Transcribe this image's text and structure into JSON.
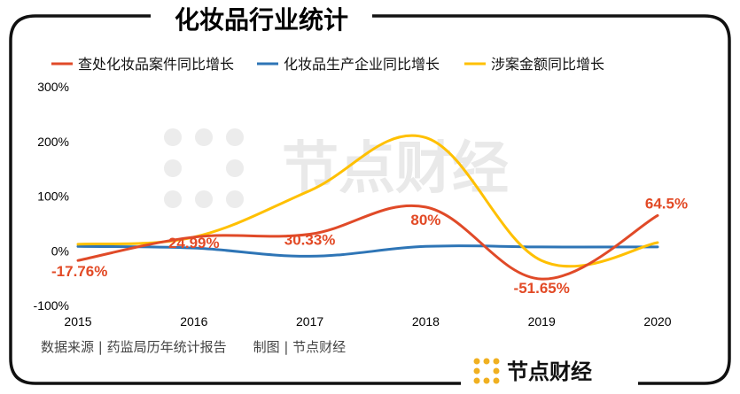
{
  "title": "化妆品行业统计",
  "source_note": "数据来源 | 药监局历年统计报告　　制图 | 节点财经",
  "brand": "节点财经",
  "watermark": "节点财经",
  "colors": {
    "case": "#e04a28",
    "enterprise": "#2e75b6",
    "amount": "#ffc000",
    "label": "#e24a26"
  },
  "chart_data": {
    "type": "line",
    "title": "化妆品行业统计",
    "x": [
      "2015",
      "2016",
      "2017",
      "2018",
      "2019",
      "2020"
    ],
    "ylim": [
      -100,
      300
    ],
    "yticks": [
      "300%",
      "200%",
      "100%",
      "0%",
      "-100%"
    ],
    "ytick_values": [
      300,
      200,
      100,
      0,
      -100
    ],
    "series": [
      {
        "name": "查处化妆品案件同比增长",
        "values": [
          -17.76,
          24.99,
          30.33,
          80,
          -51.65,
          64.5
        ],
        "color": "#e04a28",
        "labels": [
          "-17.76%",
          "24.99%",
          "30.33%",
          "80%",
          "-51.65%",
          "64.5%"
        ]
      },
      {
        "name": "化妆品生产企业同比增长",
        "values": [
          8,
          5,
          -10,
          8,
          7,
          7
        ],
        "color": "#2e75b6"
      },
      {
        "name": "涉案金额同比增长",
        "values": [
          12,
          25,
          110,
          207,
          -18,
          15
        ],
        "color": "#ffc000"
      }
    ]
  }
}
